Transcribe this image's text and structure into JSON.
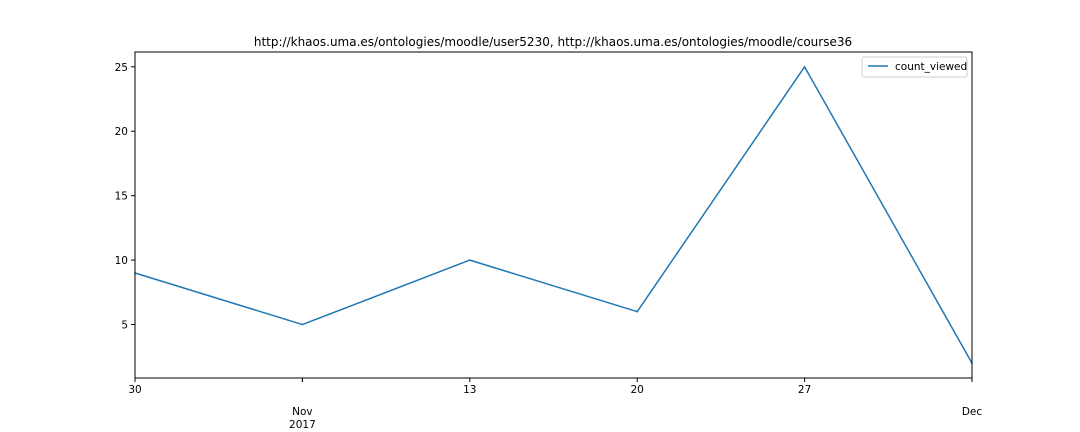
{
  "chart_data": {
    "type": "line",
    "title": "http://khaos.uma.es/ontologies/moodle/user5230, http://khaos.uma.es/ontologies/moodle/course36",
    "xlabel": "",
    "ylabel": "",
    "x": [
      "2017-10-30",
      "2017-11-06",
      "2017-11-13",
      "2017-11-20",
      "2017-11-27",
      "2017-12-04"
    ],
    "xlim": [
      "2017-10-30",
      "2017-12-04"
    ],
    "x_ticks": [
      {
        "x": "2017-10-30",
        "label": "30",
        "sub": ""
      },
      {
        "x": "2017-11-06",
        "label": "",
        "sub": ""
      },
      {
        "x": "2017-11-13",
        "label": "13",
        "sub": ""
      },
      {
        "x": "2017-11-20",
        "label": "20",
        "sub": ""
      },
      {
        "x": "2017-11-27",
        "label": "27",
        "sub": ""
      }
    ],
    "x_major_labels": [
      {
        "x": "2017-11-06",
        "label": "Nov",
        "sub": "2017"
      },
      {
        "x": "2017-12-04",
        "label": "Dec",
        "sub": ""
      }
    ],
    "series": [
      {
        "name": "count_viewed",
        "color": "#1f77b4",
        "values": [
          9,
          5,
          10,
          6,
          25,
          2
        ]
      }
    ],
    "ylim": [
      0.85,
      26.15
    ],
    "y_ticks": [
      5,
      10,
      15,
      20,
      25
    ],
    "grid": false,
    "legend": "top-right"
  }
}
